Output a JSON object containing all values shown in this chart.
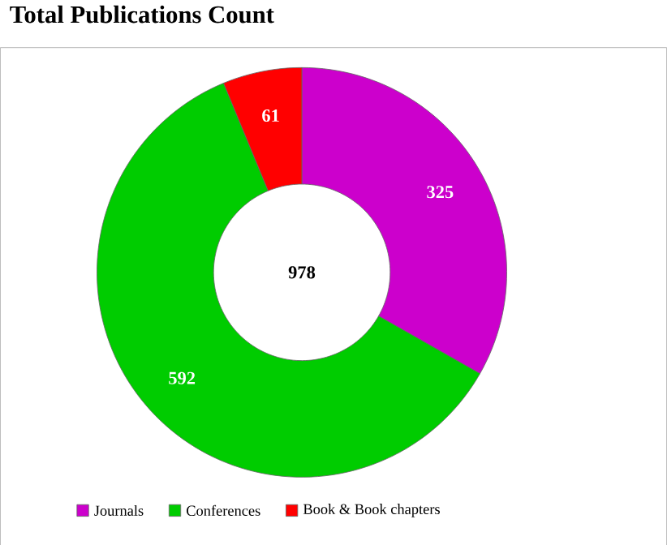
{
  "chart_data": {
    "type": "donut",
    "title": "Total Publications Count",
    "categories": [
      "Journals",
      "Conferences",
      "Book & Book chapters"
    ],
    "values": [
      325,
      592,
      61
    ],
    "colors": [
      "#cc00cc",
      "#00cc00",
      "#ff0000"
    ],
    "data_labels": true,
    "annotations": [
      "978"
    ],
    "legend": "bottom"
  }
}
